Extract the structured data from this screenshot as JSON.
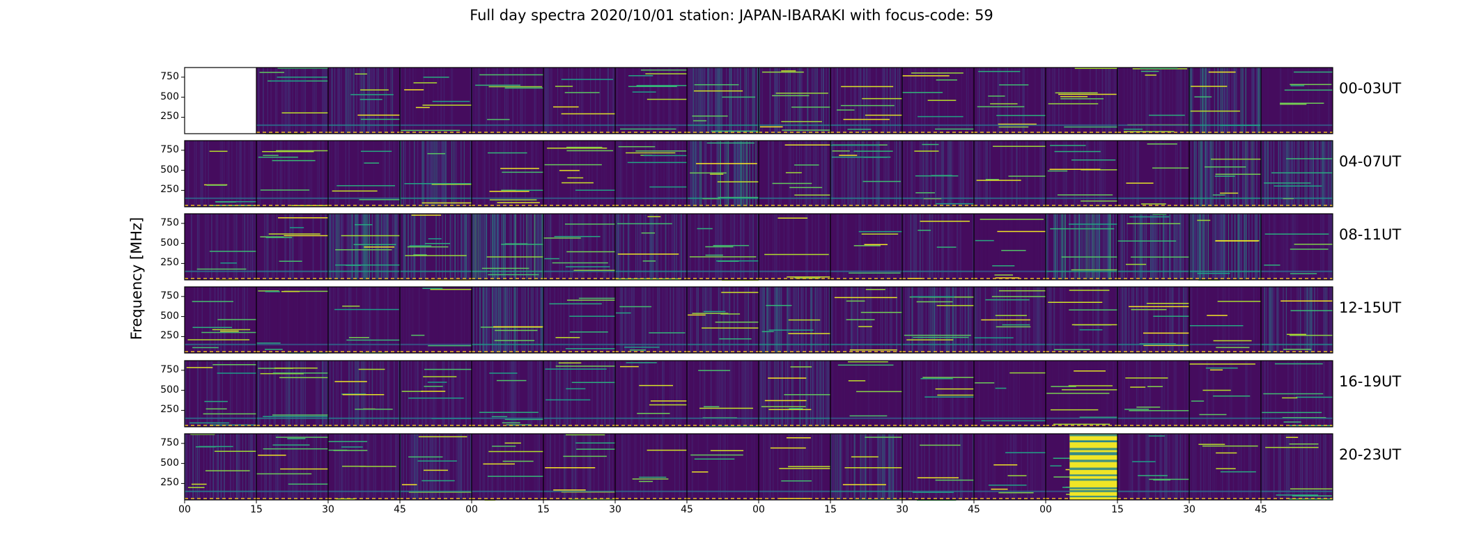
{
  "chart_data": {
    "type": "heatmap",
    "title": "Full day spectra 2020/10/01 station: JAPAN-IBARAKI with focus-code: 59",
    "ylabel": "Frequency [MHz]",
    "xlabel": "",
    "ylim": [
      45,
      870
    ],
    "y_ticks": [
      "750",
      "500",
      "250"
    ],
    "x_ticks": [
      "00",
      "15",
      "30",
      "45",
      "00",
      "15",
      "30",
      "45",
      "00",
      "15",
      "30",
      "45",
      "00",
      "15",
      "30",
      "45"
    ],
    "colormap": "viridis",
    "rows": [
      {
        "label": "00-03UT",
        "panel_intensity": [
          null,
          0.28,
          0.42,
          0.22,
          0.26,
          0.3,
          0.2,
          0.55,
          0.45,
          0.38,
          0.2,
          0.26,
          0.24,
          0.22,
          0.58,
          0.14
        ]
      },
      {
        "label": "04-07UT",
        "panel_intensity": [
          0.22,
          0.2,
          0.24,
          0.5,
          0.18,
          0.16,
          0.2,
          0.6,
          0.3,
          0.4,
          0.34,
          0.3,
          0.24,
          0.26,
          0.6,
          0.48
        ]
      },
      {
        "label": "08-11UT",
        "panel_intensity": [
          0.3,
          0.34,
          0.58,
          0.52,
          0.7,
          0.3,
          0.44,
          0.3,
          0.22,
          0.22,
          0.3,
          0.06,
          0.64,
          0.52,
          0.6,
          0.22
        ]
      },
      {
        "label": "12-15UT",
        "panel_intensity": [
          0.28,
          0.1,
          0.22,
          0.12,
          0.55,
          0.26,
          0.3,
          0.42,
          0.52,
          0.38,
          0.48,
          0.4,
          0.26,
          0.4,
          0.16,
          0.46
        ]
      },
      {
        "label": "16-19UT",
        "panel_intensity": [
          0.26,
          0.4,
          0.36,
          0.26,
          0.26,
          0.3,
          0.24,
          0.24,
          0.42,
          0.1,
          0.24,
          0.14,
          0.1,
          0.2,
          0.22,
          0.24
        ]
      },
      {
        "label": "20-23UT",
        "panel_intensity": [
          0.4,
          0.24,
          0.24,
          0.4,
          0.24,
          0.28,
          0.22,
          0.2,
          0.24,
          0.5,
          0.3,
          0.18,
          0.1,
          0.3,
          0.22,
          0.3
        ]
      }
    ],
    "special_regions": [
      {
        "row": 0,
        "panel": 0,
        "note": "blank"
      },
      {
        "row": 5,
        "panel": 12,
        "portion": "second two-thirds",
        "note": "saturated yellow"
      }
    ]
  }
}
